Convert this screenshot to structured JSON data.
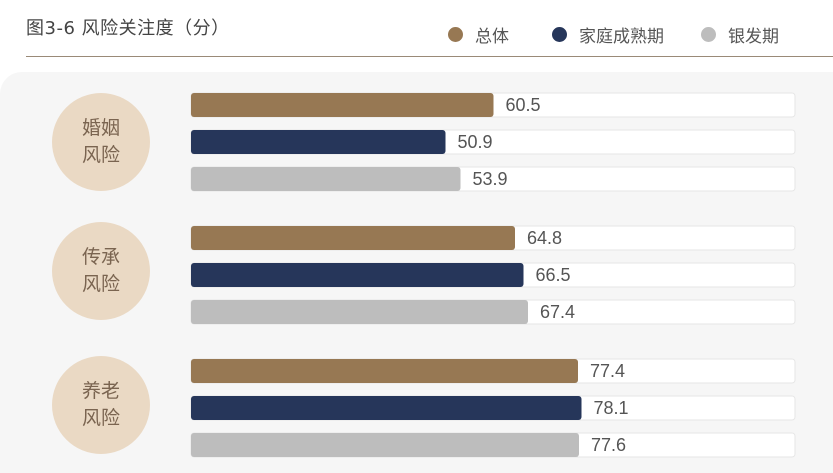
{
  "chart_data": {
    "type": "bar",
    "orientation": "horizontal",
    "title": "图3-6 风险关注度（分）",
    "categories": [
      "婚姻风险",
      "传承风险",
      "养老风险"
    ],
    "series": [
      {
        "name": "总体",
        "color": "#977853",
        "values": [
          60.5,
          64.8,
          77.4
        ]
      },
      {
        "name": "家庭成熟期",
        "color": "#26365a",
        "values": [
          50.9,
          66.5,
          78.1
        ]
      },
      {
        "name": "银发期",
        "color": "#bdbdbd",
        "values": [
          53.9,
          67.4,
          77.6
        ]
      }
    ],
    "xlim": [
      0,
      100
    ],
    "legend_position": "top-right",
    "grid": false
  },
  "colors": {
    "category_circle": "#ead9c4",
    "category_text": "#7a6450",
    "bar_track": "#ffffff",
    "panel_background": "#f6f6f6"
  }
}
